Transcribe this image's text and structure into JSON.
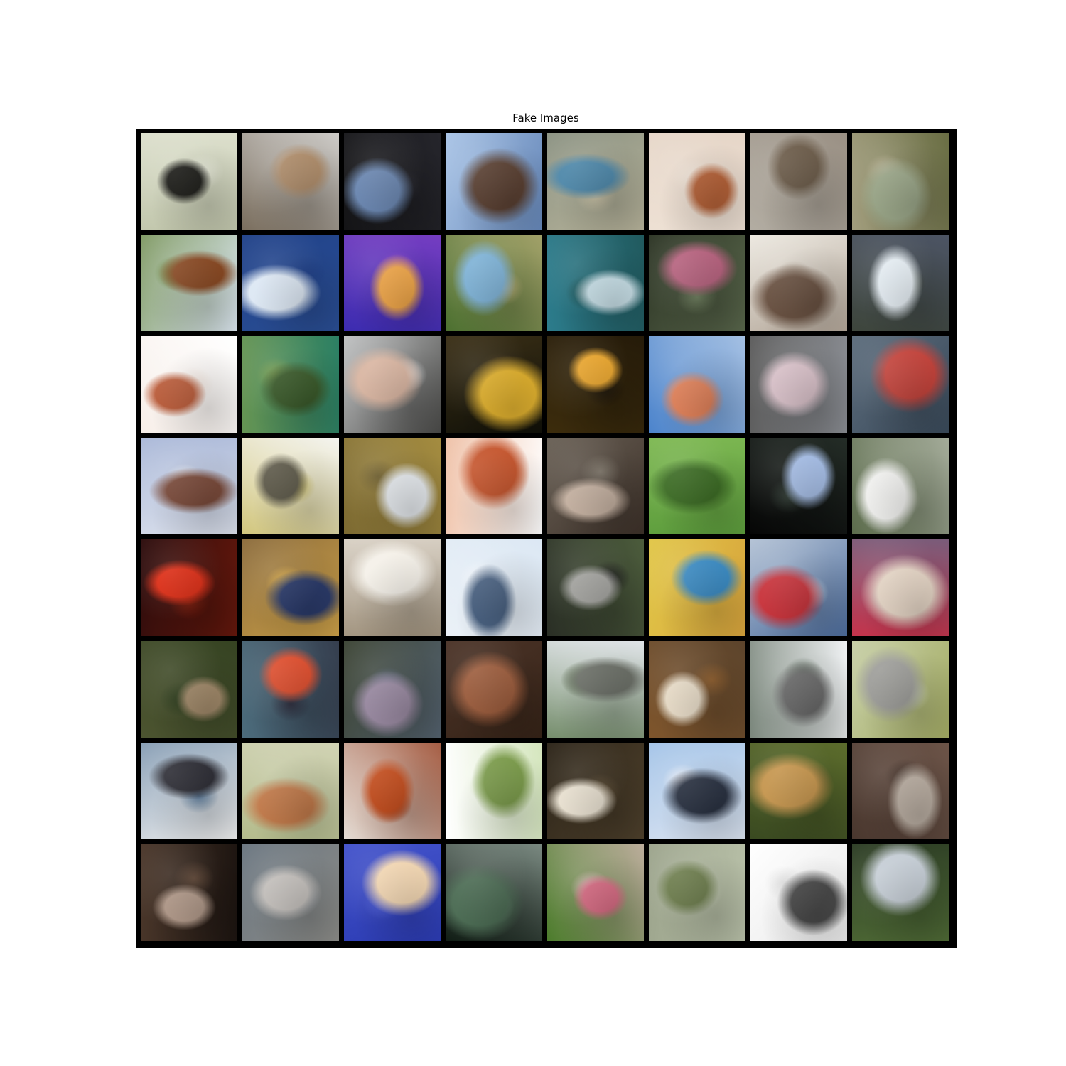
{
  "figure": {
    "title": "Fake Images"
  },
  "grid": {
    "rows": 8,
    "cols": 8,
    "frame_color": "#000000",
    "tiles": [
      {
        "bg": "#c3c8ae",
        "shape": "#1e1e1a",
        "accent": "#e6e8d8"
      },
      {
        "bg": "#7a6e5e",
        "shape": "#b08e6c",
        "accent": "#eef0f2"
      },
      {
        "bg": "#141416",
        "shape": "#6a86b0",
        "accent": "#2c2c34"
      },
      {
        "bg": "#a9c4e6",
        "shape": "#5c4234",
        "accent": "#4a6ea6"
      },
      {
        "bg": "#8b9282",
        "shape": "#4c86a8",
        "accent": "#c8c0a4"
      },
      {
        "bg": "#e6d6c8",
        "shape": "#b8643a",
        "accent": "#f0e4d8"
      },
      {
        "bg": "#9a9084",
        "shape": "#6a5a48",
        "accent": "#bcb8ae"
      },
      {
        "bg": "#6a6e44",
        "shape": "#9ca88a",
        "accent": "#b8b094"
      },
      {
        "bg": "#dde8f2",
        "shape": "#8a4a24",
        "accent": "#5a7a2a"
      },
      {
        "bg": "#2a4e94",
        "shape": "#dde8f4",
        "accent": "#1c3c84"
      },
      {
        "bg": "#3c2cb0",
        "shape": "#f2a84a",
        "accent": "#8c44c8"
      },
      {
        "bg": "#4c7030",
        "shape": "#7cb0d4",
        "accent": "#c4b480"
      },
      {
        "bg": "#2c7c8c",
        "shape": "#cce4ec",
        "accent": "#1c4c4c"
      },
      {
        "bg": "#2c3424",
        "shape": "#b4607c",
        "accent": "#6c7c5c"
      },
      {
        "bg": "#ece8e0",
        "shape": "#6c5444",
        "accent": "#9c8c7c"
      },
      {
        "bg": "#4c5464",
        "shape": "#e6eef4",
        "accent": "#38402c"
      },
      {
        "bg": "#ffffff",
        "shape": "#bc5e3c",
        "accent": "#f4e8e0"
      },
      {
        "bg": "#2c8064",
        "shape": "#3c5c2c",
        "accent": "#7c9c4c"
      },
      {
        "bg": "#4a4a48",
        "shape": "#d8b4a0",
        "accent": "#f0f2f4"
      },
      {
        "bg": "#101008",
        "shape": "#e4b430",
        "accent": "#4c3c1c"
      },
      {
        "bg": "#3c2c0c",
        "shape": "#e8a42c",
        "accent": "#1c1408"
      },
      {
        "bg": "#4c84cc",
        "shape": "#e4845c",
        "accent": "#c8d8ec"
      },
      {
        "bg": "#5c5c5c",
        "shape": "#d8c0c8",
        "accent": "#9ca0a8"
      },
      {
        "bg": "#5c6c7c",
        "shape": "#c4443c",
        "accent": "#2c3c4c"
      },
      {
        "bg": "#aab8d8",
        "shape": "#7c4c3c",
        "accent": "#eef0f4"
      },
      {
        "bg": "#f4f4f0",
        "shape": "#5c5848",
        "accent": "#c4b450"
      },
      {
        "bg": "#a48c40",
        "shape": "#e8ecf0",
        "accent": "#6c5c2c"
      },
      {
        "bg": "#ffffff",
        "shape": "#c4542c",
        "accent": "#e8a884"
      },
      {
        "bg": "#3c3028",
        "shape": "#c8b4a4",
        "accent": "#7c7468"
      },
      {
        "bg": "#5c9c3c",
        "shape": "#3c6c24",
        "accent": "#8cc45c"
      },
      {
        "bg": "#060606",
        "shape": "#a4bce4",
        "accent": "#303c34"
      },
      {
        "bg": "#5c6c4c",
        "shape": "#f0f0ee",
        "accent": "#c0c4b8"
      },
      {
        "bg": "#2c0c0c",
        "shape": "#dc2c14",
        "accent": "#7c1c0c"
      },
      {
        "bg": "#8c6c3c",
        "shape": "#2c3c6c",
        "accent": "#e4b44c"
      },
      {
        "bg": "#d8d0c4",
        "shape": "#f4f0e8",
        "accent": "#8c7c64"
      },
      {
        "bg": "#dce8f4",
        "shape": "#4c6484",
        "accent": "#f0f4f8"
      },
      {
        "bg": "#4c5c3c",
        "shape": "#a4a4a0",
        "accent": "#1c1c1c"
      },
      {
        "bg": "#d8a43c",
        "shape": "#3c8cc4",
        "accent": "#e4d44c"
      },
      {
        "bg": "#4c6c9c",
        "shape": "#c8343c",
        "accent": "#dce4ec"
      },
      {
        "bg": "#c4344c",
        "shape": "#e8d8c8",
        "accent": "#5c6c8c"
      },
      {
        "bg": "#4c5430",
        "shape": "#a48c6c",
        "accent": "#2c3c1c"
      },
      {
        "bg": "#4c6c7c",
        "shape": "#dc4c2c",
        "accent": "#2c2c3c"
      },
      {
        "bg": "#3c4434",
        "shape": "#9c8ca4",
        "accent": "#5c6c84"
      },
      {
        "bg": "#4c3428",
        "shape": "#9c5c3c",
        "accent": "#2c1c10"
      },
      {
        "bg": "#e0e4e8",
        "shape": "#6c7068",
        "accent": "#4c6c3c"
      },
      {
        "bg": "#5c442c",
        "shape": "#e8dcc8",
        "accent": "#8c5c2c"
      },
      {
        "bg": "#f0f2f4",
        "shape": "#6c6c6c",
        "accent": "#4c5c4c"
      },
      {
        "bg": "#a4ac64",
        "shape": "#9c9c98",
        "accent": "#d4dcc0"
      },
      {
        "bg": "#f0f0f0",
        "shape": "#2c2c34",
        "accent": "#5c7c9c"
      },
      {
        "bg": "#b4bc8c",
        "shape": "#c47c4c",
        "accent": "#dcdcc4"
      },
      {
        "bg": "#e4dcd4",
        "shape": "#c44c1c",
        "accent": "#8c2c0c"
      },
      {
        "bg": "#ffffff",
        "shape": "#7c9c4c",
        "accent": "#c4dca4"
      },
      {
        "bg": "#2c2418",
        "shape": "#e8e0d0",
        "accent": "#5c4c34"
      },
      {
        "bg": "#a4c4e8",
        "shape": "#2c3444",
        "accent": "#f0f0f4"
      },
      {
        "bg": "#5c6c2c",
        "shape": "#c4944c",
        "accent": "#2c3c1c"
      },
      {
        "bg": "#6c5448",
        "shape": "#bcb0a4",
        "accent": "#3c2c24"
      },
      {
        "bg": "#1c1410",
        "shape": "#b49c8c",
        "accent": "#5c4434"
      },
      {
        "bg": "#8c8c88",
        "shape": "#c4c0bc",
        "accent": "#5c6c7c"
      },
      {
        "bg": "#2c3cb4",
        "shape": "#f4d8b4",
        "accent": "#4c5cd4"
      },
      {
        "bg": "#101c14",
        "shape": "#4c6c54",
        "accent": "#a4b4ac"
      },
      {
        "bg": "#4c7c2c",
        "shape": "#d86c84",
        "accent": "#e8c0c8"
      },
      {
        "bg": "#9ca48c",
        "shape": "#6c7c4c",
        "accent": "#c4ccb4"
      },
      {
        "bg": "#ffffff",
        "shape": "#4c4c4c",
        "accent": "#e0e0e0"
      },
      {
        "bg": "#2c3c24",
        "shape": "#c4ccd4",
        "accent": "#5c7c3c"
      }
    ]
  }
}
